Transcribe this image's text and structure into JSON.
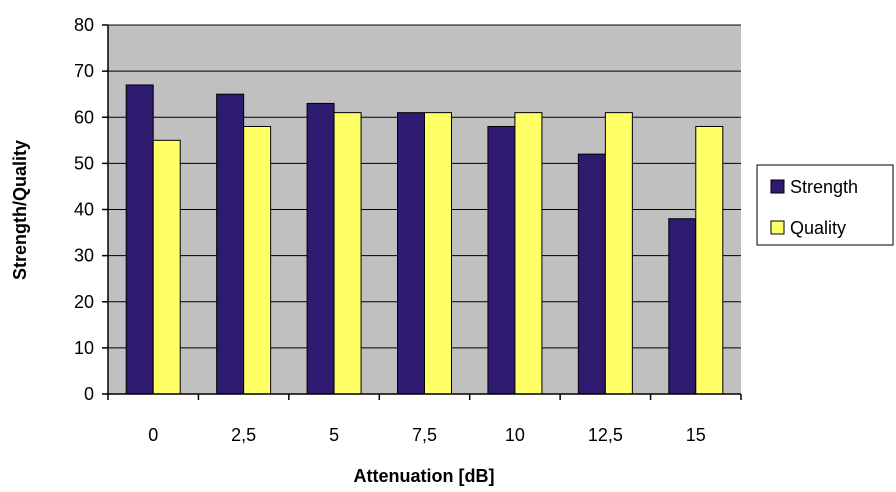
{
  "chart_data": {
    "type": "bar",
    "categories": [
      "0",
      "2,5",
      "5",
      "7,5",
      "10",
      "12,5",
      "15"
    ],
    "series": [
      {
        "name": "Strength",
        "color": "#2e1a6e",
        "values": [
          67,
          65,
          63,
          61,
          58,
          52,
          38
        ]
      },
      {
        "name": "Quality",
        "color": "#ffff66",
        "values": [
          55,
          58,
          61,
          61,
          61,
          61,
          58
        ]
      }
    ],
    "xlabel": "Attenuation [dB]",
    "ylabel": "Strength/Quality",
    "ylim": [
      0,
      80
    ],
    "yticks": [
      "0",
      "10",
      "20",
      "30",
      "40",
      "50",
      "60",
      "70",
      "80"
    ],
    "grid": true,
    "legend_position": "right",
    "plot_background": "#c0c0c0"
  }
}
